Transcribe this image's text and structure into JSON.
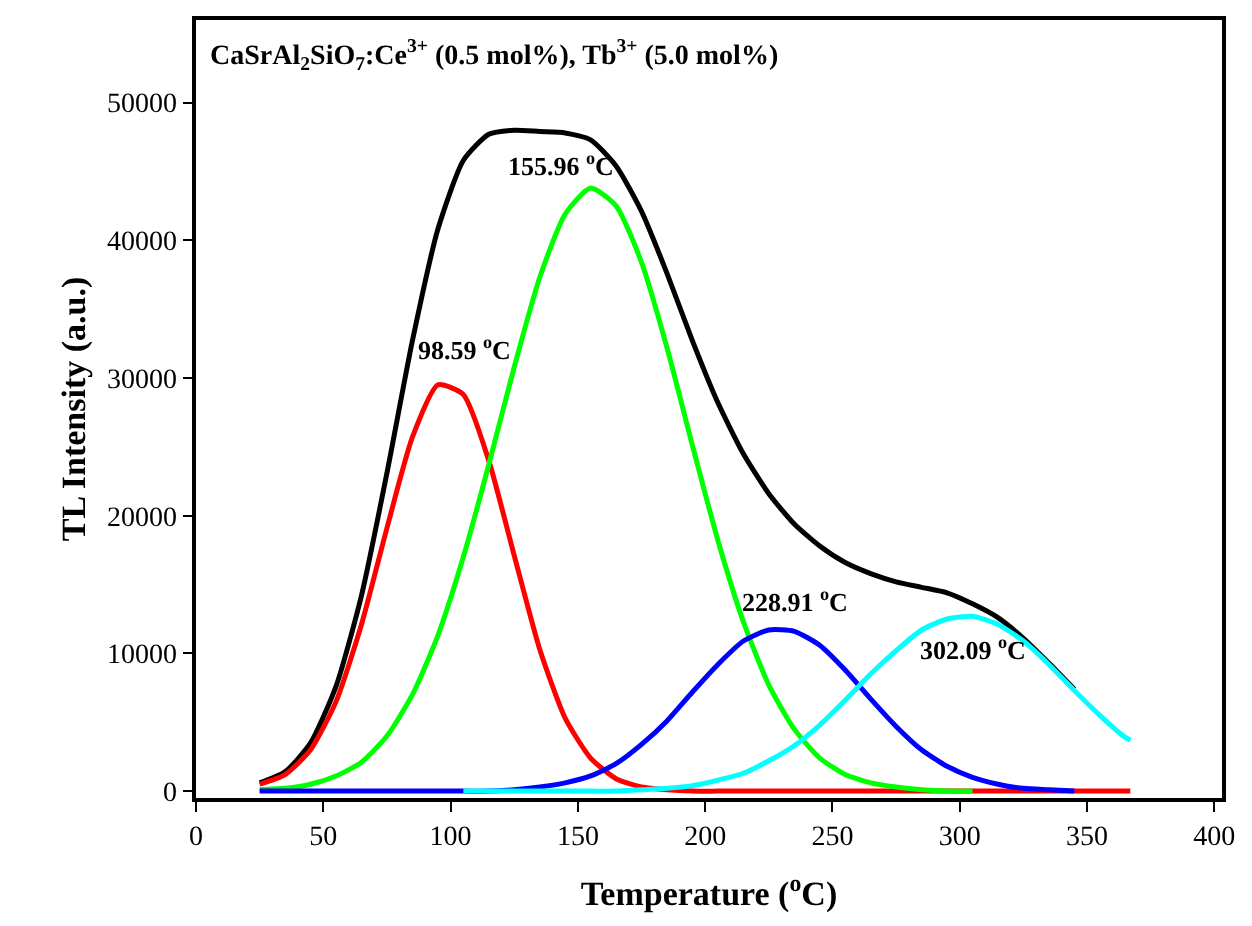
{
  "chart_data": {
    "type": "line",
    "title": "CaSrAl$_{2}$SiO$_{7}$:Ce$^{3+}$ (0.5 mol%), Tb$^{3+}$ (5.0 mol%)",
    "xlabel": "Temperature ($^{o}$C)",
    "ylabel": "TL Intensity (a.u.)",
    "x": [
      25,
      35,
      45,
      55,
      65,
      75,
      85,
      95,
      105,
      115,
      125,
      135,
      145,
      155,
      165,
      175,
      185,
      195,
      205,
      215,
      225,
      235,
      245,
      255,
      265,
      275,
      285,
      295,
      305,
      315,
      325,
      335,
      345,
      355,
      365,
      367
    ],
    "series": [
      {
        "color": "#000000",
        "values": [
          600,
          1400,
          3500,
          7600,
          14200,
          23100,
          32700,
          40800,
          45800,
          47700,
          48000,
          47900,
          47800,
          47300,
          45400,
          42100,
          37600,
          32700,
          28200,
          24500,
          21600,
          19400,
          17800,
          16600,
          15800,
          15200,
          14800,
          14400,
          13600,
          12600,
          11100,
          9300,
          7400,
          null,
          null,
          null
        ]
      },
      {
        "color": "#ff0000",
        "values": [
          500,
          1200,
          3000,
          6500,
          12100,
          19100,
          25700,
          29500,
          28800,
          24000,
          17100,
          10300,
          5300,
          2400,
          900,
          300,
          100,
          0,
          0,
          0,
          0,
          0,
          0,
          0,
          0,
          0,
          0,
          0,
          0,
          0,
          0,
          0,
          0,
          0,
          0,
          0
        ]
      },
      {
        "color": "#00ff00",
        "values": [
          100,
          200,
          500,
          1100,
          2100,
          4000,
          7000,
          11300,
          17000,
          23700,
          30800,
          37300,
          41900,
          43800,
          42500,
          38400,
          32200,
          25100,
          18200,
          12300,
          7700,
          4500,
          2400,
          1200,
          600,
          300,
          100,
          0,
          0,
          null,
          null,
          null,
          null,
          null,
          null,
          null
        ]
      },
      {
        "color": "#0000ff",
        "values": [
          0,
          0,
          0,
          0,
          0,
          0,
          0,
          0,
          0,
          0,
          100,
          300,
          600,
          1100,
          2000,
          3400,
          5100,
          7200,
          9200,
          10900,
          11700,
          11600,
          10600,
          8800,
          6700,
          4700,
          3000,
          1800,
          1000,
          500,
          200,
          100,
          0,
          null,
          null,
          null
        ]
      },
      {
        "color": "#00ffff",
        "values": [
          null,
          null,
          null,
          null,
          null,
          null,
          null,
          null,
          0,
          0,
          0,
          0,
          0,
          0,
          0,
          100,
          200,
          400,
          800,
          1300,
          2200,
          3300,
          4800,
          6600,
          8500,
          10200,
          11700,
          12500,
          12700,
          12100,
          10900,
          9200,
          7300,
          5500,
          3900,
          3700
        ]
      }
    ],
    "annotations": [
      {
        "text": "98.59 $^{o}$C",
        "x": 98.59,
        "y": 29800
      },
      {
        "text": "155.96 $^{o}$C",
        "x": 155.96,
        "y": 43800
      },
      {
        "text": "228.91 $^{o}$C",
        "x": 228.91,
        "y": 11800
      },
      {
        "text": "302.09 $^{o}$C",
        "x": 302.09,
        "y": 12700
      }
    ],
    "xlim": [
      0,
      403
    ],
    "ylim": [
      -500,
      56000
    ],
    "xticks": [
      0,
      50,
      100,
      150,
      200,
      250,
      300,
      350,
      400
    ],
    "yticks": [
      0,
      10000,
      20000,
      30000,
      40000,
      50000
    ],
    "legend": false,
    "marker": "none",
    "line_style": "solid"
  }
}
